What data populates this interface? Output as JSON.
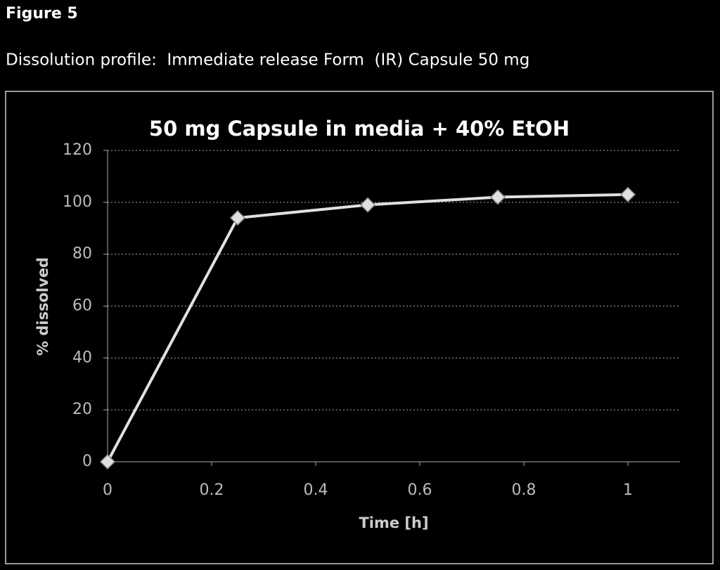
{
  "figure_label": "Figure 5",
  "caption": "Dissolution profile:  Immediate release Form  (IR) Capsule 50 mg",
  "chart_data": {
    "type": "line",
    "title": "50 mg Capsule in media + 40% EtOH",
    "x_label": "Time [h]",
    "y_label": "% dissolved",
    "x": [
      0,
      0.25,
      0.5,
      0.75,
      1
    ],
    "series": [
      {
        "color": "#e0e0e0",
        "values": [
          0,
          94,
          99,
          102,
          103
        ]
      }
    ],
    "xlim": [
      0,
      1.1
    ],
    "xticks": [
      0,
      0.2,
      0.4,
      0.6,
      0.8,
      1
    ],
    "ylim": [
      0,
      120
    ],
    "yticks": [
      0,
      20,
      40,
      60,
      80,
      100,
      120
    ],
    "grid": true
  }
}
